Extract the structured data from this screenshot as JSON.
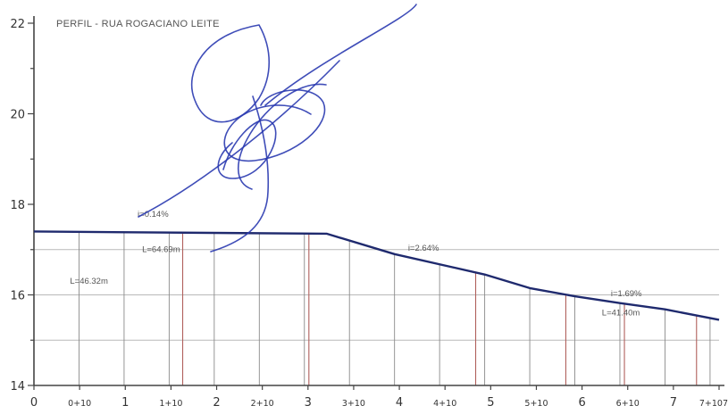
{
  "chart_data": {
    "type": "line",
    "title": "PERFIL - RUA ROGACIANO LEITE",
    "xlabel": "",
    "ylabel": "",
    "x_ticks": [
      "0",
      "0+10",
      "1",
      "1+10",
      "2",
      "2+10",
      "3",
      "3+10",
      "4",
      "4+10",
      "5",
      "5+10",
      "6",
      "6+10",
      "7",
      "7+107"
    ],
    "y_ticks": [
      14,
      16,
      18,
      20,
      22
    ],
    "ylim": [
      14,
      22
    ],
    "xlim": [
      0,
      7.6
    ],
    "grid": true,
    "series": [
      {
        "x": [
          0,
          3.25,
          4.0,
          5.0,
          5.5,
          6.0,
          6.5,
          7.0,
          7.6
        ],
        "y": [
          17.4,
          17.35,
          16.9,
          16.45,
          16.15,
          15.97,
          15.82,
          15.68,
          15.45
        ]
      }
    ],
    "annotations": [
      {
        "text": "i=0.14%",
        "x": 1.15,
        "y": 17.72
      },
      {
        "text": "L=64.69m",
        "x": 1.2,
        "y": 16.95
      },
      {
        "text": "i=2.64%",
        "x": 4.15,
        "y": 16.98
      },
      {
        "text": "L=46.32m",
        "x": 0.4,
        "y": 16.25
      },
      {
        "text": "i=1.69%",
        "x": 6.4,
        "y": 15.97
      },
      {
        "text": "L=41.40m",
        "x": 6.3,
        "y": 15.55
      }
    ],
    "station_lines": {
      "gray": [
        0.5,
        1,
        1.5,
        2,
        2.5,
        3,
        3.5,
        4,
        4.5,
        5,
        5.5,
        6,
        6.5,
        7,
        7.5
      ],
      "red": [
        1.65,
        3.05,
        4.9,
        5.9,
        6.55,
        7.35
      ]
    }
  },
  "colors": {
    "profile": "#1f2a6e",
    "signature": "#2a3ab0",
    "grid": "#b9b9b9",
    "station_red": "#b0605c"
  }
}
